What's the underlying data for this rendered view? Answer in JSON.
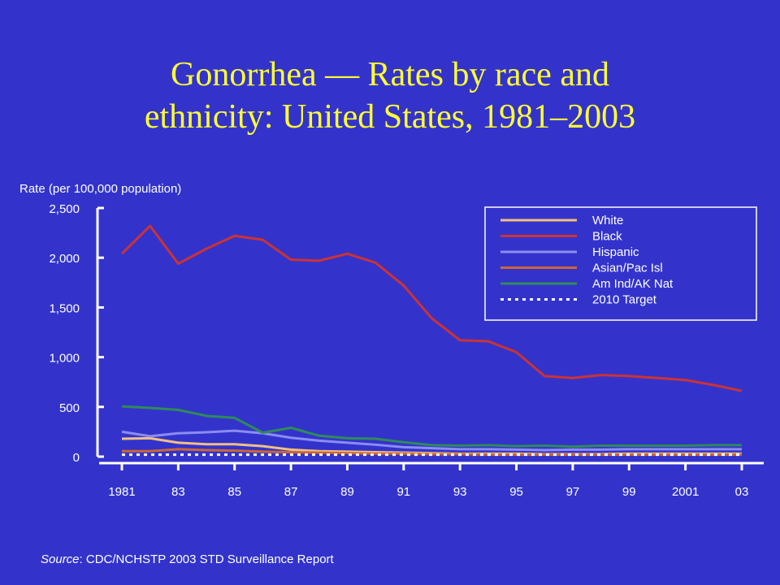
{
  "title_line1": "Gonorrhea — Rates by race and",
  "title_line2": "ethnicity: United States, 1981–2003",
  "source": {
    "label": "Source",
    "text": ": CDC/NCHSTP 2003 STD Surveillance Report"
  },
  "colors": {
    "background": "#3333cc",
    "title": "#ffff33",
    "axis": "#ffffff",
    "legend_bg": "#3333cc"
  },
  "chart_data": {
    "type": "line",
    "title": "Gonorrhea — Rates by race and ethnicity: United States, 1981–2003",
    "xlabel": "",
    "ylabel": "Rate (per 100,000 population)",
    "ylim": [
      0,
      2500
    ],
    "yticks": [
      0,
      500,
      1000,
      1500,
      2000,
      2500
    ],
    "ytick_labels": [
      "0",
      "500",
      "1,000",
      "1,500",
      "2,000",
      "2,500"
    ],
    "x": [
      1981,
      1982,
      1983,
      1984,
      1985,
      1986,
      1987,
      1988,
      1989,
      1990,
      1991,
      1992,
      1993,
      1994,
      1995,
      1996,
      1997,
      1998,
      1999,
      2000,
      2001,
      2002,
      2003
    ],
    "xticks": [
      1981,
      1983,
      1985,
      1987,
      1989,
      1991,
      1993,
      1995,
      1997,
      1999,
      2001,
      2003
    ],
    "xtick_labels": [
      "1981",
      "83",
      "85",
      "87",
      "89",
      "91",
      "93",
      "95",
      "97",
      "99",
      "2001",
      "03"
    ],
    "legend_position": "top-right",
    "grid": false,
    "series": [
      {
        "name": "White",
        "color": "#f0c080",
        "dash": false,
        "values": [
          180,
          185,
          140,
          125,
          125,
          105,
          70,
          55,
          50,
          45,
          40,
          35,
          30,
          30,
          30,
          25,
          25,
          25,
          30,
          30,
          30,
          30,
          30
        ]
      },
      {
        "name": "Black",
        "color": "#cc3333",
        "dash": false,
        "values": [
          2040,
          2320,
          1940,
          2090,
          2220,
          2180,
          1980,
          1970,
          2040,
          1950,
          1720,
          1390,
          1170,
          1160,
          1050,
          810,
          790,
          820,
          810,
          790,
          770,
          720,
          660
        ]
      },
      {
        "name": "Hispanic",
        "color": "#8c8cf0",
        "dash": false,
        "values": [
          250,
          205,
          235,
          245,
          260,
          235,
          190,
          160,
          140,
          120,
          95,
          85,
          75,
          75,
          70,
          65,
          70,
          70,
          75,
          75,
          75,
          75,
          75
        ]
      },
      {
        "name": "Asian/Pac Isl",
        "color": "#cc6633",
        "dash": false,
        "values": [
          55,
          55,
          75,
          65,
          60,
          50,
          45,
          40,
          35,
          30,
          30,
          25,
          25,
          20,
          20,
          20,
          20,
          20,
          20,
          20,
          20,
          20,
          20
        ]
      },
      {
        "name": "Am Ind/AK Nat",
        "color": "#2e8b57",
        "dash": false,
        "values": [
          505,
          490,
          470,
          410,
          390,
          240,
          290,
          210,
          185,
          180,
          145,
          115,
          110,
          115,
          105,
          110,
          100,
          110,
          110,
          110,
          110,
          115,
          115
        ]
      },
      {
        "name": "2010 Target",
        "color": "#ffffff",
        "dash": true,
        "values": [
          19,
          19,
          19,
          19,
          19,
          19,
          19,
          19,
          19,
          19,
          19,
          19,
          19,
          19,
          19,
          19,
          19,
          19,
          19,
          19,
          19,
          19,
          19
        ]
      }
    ]
  }
}
